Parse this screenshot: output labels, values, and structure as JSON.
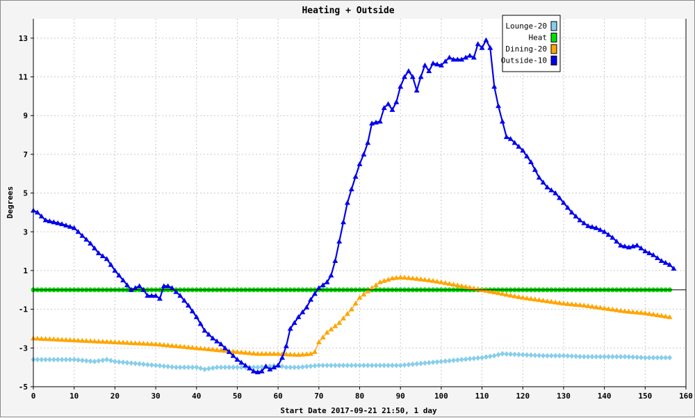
{
  "chart_data": {
    "type": "line",
    "title": "Heating + Outside",
    "xlabel": "Start Date 2017-09-21 21:50, 1 day",
    "ylabel": "Degrees",
    "xlim": [
      0,
      160
    ],
    "ylim": [
      -5,
      14
    ],
    "x_ticks": [
      0,
      10,
      20,
      30,
      40,
      50,
      60,
      70,
      80,
      90,
      100,
      110,
      120,
      130,
      140,
      150,
      160
    ],
    "y_ticks": [
      -5,
      -3,
      -1,
      1,
      3,
      5,
      7,
      9,
      11,
      13
    ],
    "grid": true,
    "legend_position": "top-right",
    "series": [
      {
        "name": "Lounge-20",
        "color": "#87ceeb",
        "marker": "diamond",
        "points": [
          [
            0,
            -3.6
          ],
          [
            5,
            -3.6
          ],
          [
            10,
            -3.6
          ],
          [
            15,
            -3.7
          ],
          [
            18,
            -3.6
          ],
          [
            20,
            -3.7
          ],
          [
            25,
            -3.8
          ],
          [
            30,
            -3.9
          ],
          [
            35,
            -4.0
          ],
          [
            40,
            -4.0
          ],
          [
            42,
            -4.1
          ],
          [
            45,
            -4.0
          ],
          [
            50,
            -4.0
          ],
          [
            55,
            -4.0
          ],
          [
            60,
            -3.9
          ],
          [
            62,
            -4.0
          ],
          [
            65,
            -4.0
          ],
          [
            70,
            -3.9
          ],
          [
            75,
            -3.9
          ],
          [
            80,
            -3.9
          ],
          [
            85,
            -3.9
          ],
          [
            90,
            -3.9
          ],
          [
            95,
            -3.8
          ],
          [
            100,
            -3.7
          ],
          [
            105,
            -3.6
          ],
          [
            110,
            -3.5
          ],
          [
            113,
            -3.4
          ],
          [
            115,
            -3.3
          ],
          [
            120,
            -3.35
          ],
          [
            125,
            -3.4
          ],
          [
            130,
            -3.4
          ],
          [
            135,
            -3.45
          ],
          [
            140,
            -3.45
          ],
          [
            145,
            -3.45
          ],
          [
            150,
            -3.5
          ],
          [
            156,
            -3.5
          ]
        ]
      },
      {
        "name": "Heat",
        "color": "#00dd00",
        "marker": "circle",
        "points": [
          [
            0,
            0
          ],
          [
            156,
            0
          ]
        ]
      },
      {
        "name": "Dining-20",
        "color": "#ffa500",
        "marker": "triangle",
        "points": [
          [
            0,
            -2.5
          ],
          [
            10,
            -2.6
          ],
          [
            20,
            -2.7
          ],
          [
            30,
            -2.8
          ],
          [
            40,
            -3.0
          ],
          [
            45,
            -3.1
          ],
          [
            50,
            -3.2
          ],
          [
            55,
            -3.3
          ],
          [
            60,
            -3.3
          ],
          [
            65,
            -3.35
          ],
          [
            68,
            -3.3
          ],
          [
            69,
            -3.2
          ],
          [
            70,
            -2.7
          ],
          [
            72,
            -2.2
          ],
          [
            75,
            -1.7
          ],
          [
            78,
            -1.0
          ],
          [
            80,
            -0.4
          ],
          [
            83,
            0.1
          ],
          [
            85,
            0.4
          ],
          [
            88,
            0.6
          ],
          [
            90,
            0.65
          ],
          [
            93,
            0.6
          ],
          [
            97,
            0.5
          ],
          [
            100,
            0.4
          ],
          [
            105,
            0.2
          ],
          [
            110,
            0.0
          ],
          [
            115,
            -0.2
          ],
          [
            120,
            -0.4
          ],
          [
            125,
            -0.55
          ],
          [
            130,
            -0.7
          ],
          [
            135,
            -0.8
          ],
          [
            140,
            -0.95
          ],
          [
            145,
            -1.1
          ],
          [
            150,
            -1.2
          ],
          [
            156,
            -1.4
          ]
        ]
      },
      {
        "name": "Outside-10",
        "color": "#0000ee",
        "marker": "triangle",
        "points": [
          [
            0,
            4.1
          ],
          [
            1,
            4.0
          ],
          [
            3,
            3.6
          ],
          [
            5,
            3.5
          ],
          [
            7,
            3.4
          ],
          [
            10,
            3.2
          ],
          [
            12,
            2.8
          ],
          [
            14,
            2.4
          ],
          [
            16,
            1.9
          ],
          [
            18,
            1.6
          ],
          [
            20,
            1.0
          ],
          [
            22,
            0.5
          ],
          [
            24,
            0.0
          ],
          [
            26,
            0.2
          ],
          [
            27,
            0.0
          ],
          [
            28,
            -0.3
          ],
          [
            30,
            -0.3
          ],
          [
            31,
            -0.45
          ],
          [
            32,
            0.2
          ],
          [
            33,
            0.2
          ],
          [
            34,
            0.1
          ],
          [
            36,
            -0.3
          ],
          [
            38,
            -0.8
          ],
          [
            40,
            -1.4
          ],
          [
            42,
            -2.1
          ],
          [
            44,
            -2.5
          ],
          [
            46,
            -2.8
          ],
          [
            48,
            -3.2
          ],
          [
            50,
            -3.6
          ],
          [
            52,
            -3.9
          ],
          [
            54,
            -4.2
          ],
          [
            55,
            -4.25
          ],
          [
            56,
            -4.2
          ],
          [
            57,
            -3.95
          ],
          [
            58,
            -4.1
          ],
          [
            60,
            -3.9
          ],
          [
            61,
            -3.5
          ],
          [
            62,
            -2.9
          ],
          [
            63,
            -2.0
          ],
          [
            65,
            -1.4
          ],
          [
            67,
            -0.9
          ],
          [
            68,
            -0.5
          ],
          [
            69,
            -0.2
          ],
          [
            70,
            0.1
          ],
          [
            72,
            0.4
          ],
          [
            73,
            0.75
          ],
          [
            74,
            1.5
          ],
          [
            75,
            2.5
          ],
          [
            76,
            3.5
          ],
          [
            77,
            4.5
          ],
          [
            78,
            5.2
          ],
          [
            80,
            6.5
          ],
          [
            81,
            7.0
          ],
          [
            82,
            7.6
          ],
          [
            83,
            8.6
          ],
          [
            85,
            8.7
          ],
          [
            86,
            9.4
          ],
          [
            87,
            9.6
          ],
          [
            88,
            9.3
          ],
          [
            89,
            9.7
          ],
          [
            90,
            10.5
          ],
          [
            91,
            11.0
          ],
          [
            92,
            11.3
          ],
          [
            93,
            11.0
          ],
          [
            94,
            10.3
          ],
          [
            95,
            11.0
          ],
          [
            96,
            11.6
          ],
          [
            97,
            11.3
          ],
          [
            98,
            11.7
          ],
          [
            100,
            11.6
          ],
          [
            101,
            11.8
          ],
          [
            102,
            12.0
          ],
          [
            103,
            11.9
          ],
          [
            105,
            11.9
          ],
          [
            107,
            12.1
          ],
          [
            108,
            12.0
          ],
          [
            109,
            12.7
          ],
          [
            110,
            12.5
          ],
          [
            111,
            12.9
          ],
          [
            112,
            12.5
          ],
          [
            113,
            10.5
          ],
          [
            114,
            9.5
          ],
          [
            115,
            8.7
          ],
          [
            116,
            7.9
          ],
          [
            117,
            7.8
          ],
          [
            118,
            7.6
          ],
          [
            120,
            7.2
          ],
          [
            122,
            6.6
          ],
          [
            124,
            5.8
          ],
          [
            126,
            5.3
          ],
          [
            128,
            5.0
          ],
          [
            130,
            4.5
          ],
          [
            132,
            4.0
          ],
          [
            134,
            3.6
          ],
          [
            136,
            3.3
          ],
          [
            138,
            3.2
          ],
          [
            140,
            3.0
          ],
          [
            142,
            2.7
          ],
          [
            144,
            2.3
          ],
          [
            146,
            2.2
          ],
          [
            148,
            2.3
          ],
          [
            150,
            2.0
          ],
          [
            152,
            1.8
          ],
          [
            154,
            1.5
          ],
          [
            156,
            1.3
          ],
          [
            157,
            1.1
          ]
        ]
      }
    ]
  }
}
